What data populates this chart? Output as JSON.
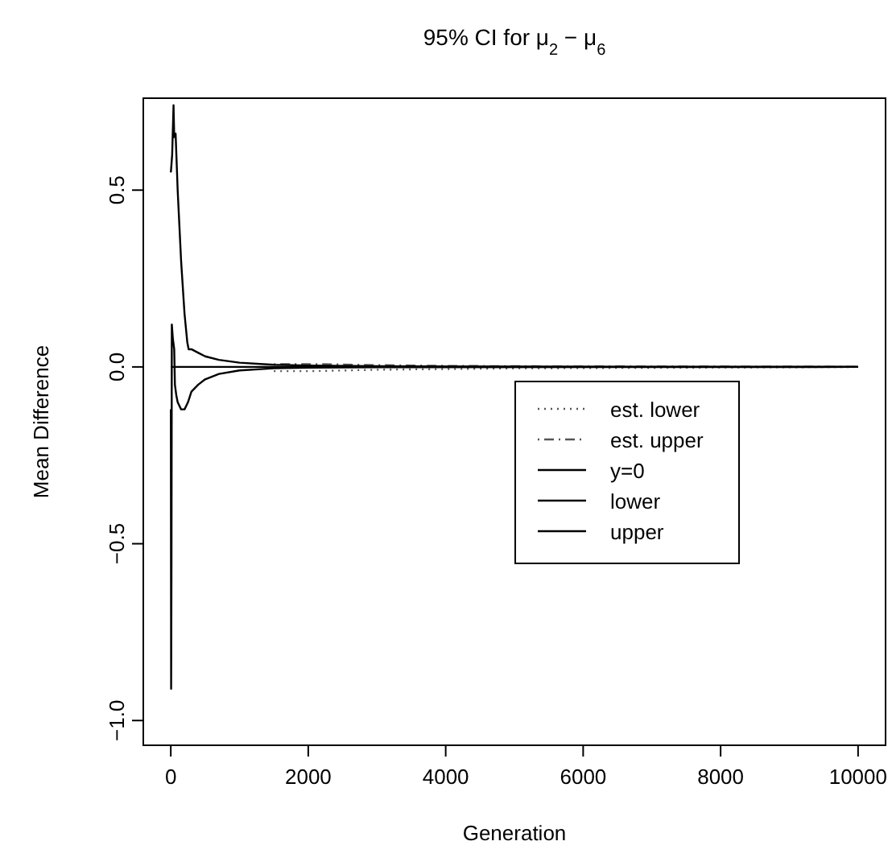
{
  "chart_data": {
    "type": "line",
    "title": "95% CI for μ$_{2}$ − μ$_{6}$",
    "xlabel": "Generation",
    "ylabel": "Mean Difference",
    "xlim": [
      -400,
      10400
    ],
    "ylim": [
      -1.07,
      0.76
    ],
    "xticks": [
      0,
      2000,
      4000,
      6000,
      8000,
      10000
    ],
    "yticks": [
      {
        "value": -1,
        "label": "−1.0"
      },
      {
        "value": -0.5,
        "label": "−0.5"
      },
      {
        "value": 0,
        "label": "0.0"
      },
      {
        "value": 0.5,
        "label": "0.5"
      }
    ],
    "legend": "right",
    "grid": false,
    "series": [
      {
        "name": "est. lower",
        "color": "#555555",
        "line_style": "dotted",
        "x": [
          1500,
          2000,
          2500,
          3000,
          4000,
          5000,
          10000
        ],
        "values": [
          -0.012,
          -0.012,
          -0.01,
          -0.008,
          -0.006,
          -0.004,
          0
        ]
      },
      {
        "name": "est. upper",
        "color": "#555555",
        "line_style": "dashdot",
        "x": [
          1500,
          2000,
          2500,
          3000,
          4000,
          5000,
          10000
        ],
        "values": [
          0.008,
          0.008,
          0.007,
          0.005,
          0.003,
          0.002,
          0
        ]
      },
      {
        "name": "y=0",
        "color": "#000000",
        "line_style": "solid",
        "x": [
          1,
          10000
        ],
        "values": [
          0,
          0
        ]
      },
      {
        "name": "lower",
        "color": "#000000",
        "line_style": "solid",
        "x": [
          1,
          5,
          10,
          15,
          30,
          50,
          60,
          80,
          100,
          150,
          200,
          250,
          300,
          400,
          500,
          700,
          1000,
          1500,
          2000,
          3000,
          10000
        ],
        "values": [
          -0.12,
          -0.91,
          -0.55,
          0.12,
          0.08,
          0.05,
          -0.05,
          -0.08,
          -0.1,
          -0.12,
          -0.12,
          -0.1,
          -0.07,
          -0.05,
          -0.035,
          -0.02,
          -0.01,
          -0.004,
          -0.002,
          -0.001,
          0
        ]
      },
      {
        "name": "upper",
        "color": "#000000",
        "line_style": "solid",
        "x": [
          1,
          20,
          40,
          50,
          70,
          100,
          150,
          200,
          240,
          260,
          300,
          400,
          500,
          700,
          1000,
          1500,
          2000,
          3000,
          5000,
          10000
        ],
        "values": [
          0.55,
          0.6,
          0.74,
          0.65,
          0.66,
          0.5,
          0.3,
          0.15,
          0.07,
          0.05,
          0.05,
          0.04,
          0.03,
          0.02,
          0.012,
          0.006,
          0.004,
          0.002,
          0.001,
          0
        ]
      }
    ]
  }
}
